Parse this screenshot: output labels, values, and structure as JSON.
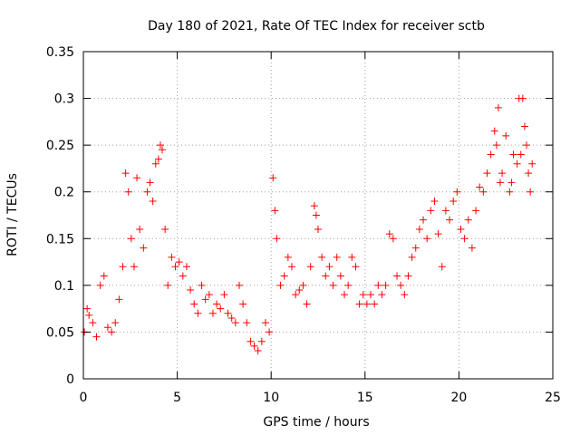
{
  "chart_data": {
    "type": "scatter",
    "title": "Day 180 of 2021, Rate Of TEC Index for receiver sctb",
    "xlabel": "GPS time / hours",
    "ylabel": "ROTI / TECUs",
    "xlim": [
      0,
      25
    ],
    "ylim": [
      0,
      0.35
    ],
    "grid": true,
    "marker": "+",
    "marker_color": "#ff0000",
    "x_ticks": [
      {
        "value": 0,
        "label": "0"
      },
      {
        "value": 5,
        "label": "5"
      },
      {
        "value": 10,
        "label": "10"
      },
      {
        "value": 15,
        "label": "15"
      },
      {
        "value": 20,
        "label": "20"
      },
      {
        "value": 25,
        "label": "25"
      }
    ],
    "y_ticks": [
      {
        "value": 0,
        "label": "0"
      },
      {
        "value": 0.05,
        "label": "0.05"
      },
      {
        "value": 0.1,
        "label": "0.1"
      },
      {
        "value": 0.15,
        "label": "0.15"
      },
      {
        "value": 0.2,
        "label": "0.2"
      },
      {
        "value": 0.25,
        "label": "0.25"
      },
      {
        "value": 0.3,
        "label": "0.3"
      },
      {
        "value": 0.35,
        "label": "0.35"
      }
    ],
    "series": [
      {
        "x": [
          0.05,
          0.2,
          0.3,
          0.5,
          0.7,
          0.9,
          1.1,
          1.3,
          1.5,
          1.7,
          1.9,
          2.1,
          2.25,
          2.4,
          2.55,
          2.7,
          2.85,
          3.0,
          3.2,
          3.4,
          3.55,
          3.7,
          3.85,
          4.0,
          4.1,
          4.2,
          4.35,
          4.5,
          4.7,
          4.9,
          5.1,
          5.3,
          5.5,
          5.7,
          5.9,
          6.1,
          6.3,
          6.5,
          6.7,
          6.9,
          7.1,
          7.3,
          7.5,
          7.7,
          7.9,
          8.1,
          8.3,
          8.5,
          8.7,
          8.9,
          9.1,
          9.3,
          9.5,
          9.7,
          9.9,
          10.1,
          10.2,
          10.3,
          10.5,
          10.7,
          10.9,
          11.1,
          11.3,
          11.5,
          11.7,
          11.9,
          12.1,
          12.3,
          12.4,
          12.5,
          12.7,
          12.9,
          13.1,
          13.3,
          13.5,
          13.7,
          13.9,
          14.1,
          14.3,
          14.5,
          14.7,
          14.9,
          15.1,
          15.3,
          15.5,
          15.7,
          15.9,
          16.1,
          16.3,
          16.5,
          16.7,
          16.9,
          17.1,
          17.3,
          17.5,
          17.7,
          17.9,
          18.1,
          18.3,
          18.5,
          18.7,
          18.9,
          19.1,
          19.3,
          19.5,
          19.7,
          19.9,
          20.1,
          20.3,
          20.5,
          20.7,
          20.9,
          21.1,
          21.3,
          21.5,
          21.7,
          21.9,
          22.0,
          22.1,
          22.2,
          22.3,
          22.5,
          22.7,
          22.8,
          22.9,
          23.1,
          23.2,
          23.3,
          23.4,
          23.5,
          23.6,
          23.7,
          23.8,
          23.9
        ],
        "y": [
          0.05,
          0.075,
          0.068,
          0.06,
          0.045,
          0.1,
          0.11,
          0.055,
          0.05,
          0.06,
          0.085,
          0.12,
          0.22,
          0.2,
          0.15,
          0.12,
          0.215,
          0.16,
          0.14,
          0.2,
          0.21,
          0.19,
          0.23,
          0.235,
          0.25,
          0.245,
          0.16,
          0.1,
          0.13,
          0.12,
          0.125,
          0.11,
          0.12,
          0.095,
          0.08,
          0.07,
          0.1,
          0.085,
          0.09,
          0.07,
          0.08,
          0.075,
          0.09,
          0.07,
          0.065,
          0.06,
          0.1,
          0.08,
          0.06,
          0.04,
          0.035,
          0.03,
          0.04,
          0.06,
          0.05,
          0.215,
          0.18,
          0.15,
          0.1,
          0.11,
          0.13,
          0.12,
          0.09,
          0.095,
          0.1,
          0.08,
          0.12,
          0.185,
          0.175,
          0.16,
          0.13,
          0.11,
          0.12,
          0.1,
          0.13,
          0.11,
          0.09,
          0.1,
          0.13,
          0.12,
          0.08,
          0.09,
          0.08,
          0.09,
          0.08,
          0.1,
          0.09,
          0.1,
          0.155,
          0.15,
          0.11,
          0.1,
          0.09,
          0.11,
          0.13,
          0.14,
          0.16,
          0.17,
          0.15,
          0.18,
          0.19,
          0.155,
          0.12,
          0.18,
          0.17,
          0.19,
          0.2,
          0.16,
          0.15,
          0.17,
          0.14,
          0.18,
          0.205,
          0.2,
          0.22,
          0.24,
          0.265,
          0.25,
          0.29,
          0.21,
          0.22,
          0.26,
          0.2,
          0.21,
          0.24,
          0.23,
          0.3,
          0.24,
          0.3,
          0.27,
          0.25,
          0.22,
          0.2,
          0.23
        ]
      }
    ]
  }
}
